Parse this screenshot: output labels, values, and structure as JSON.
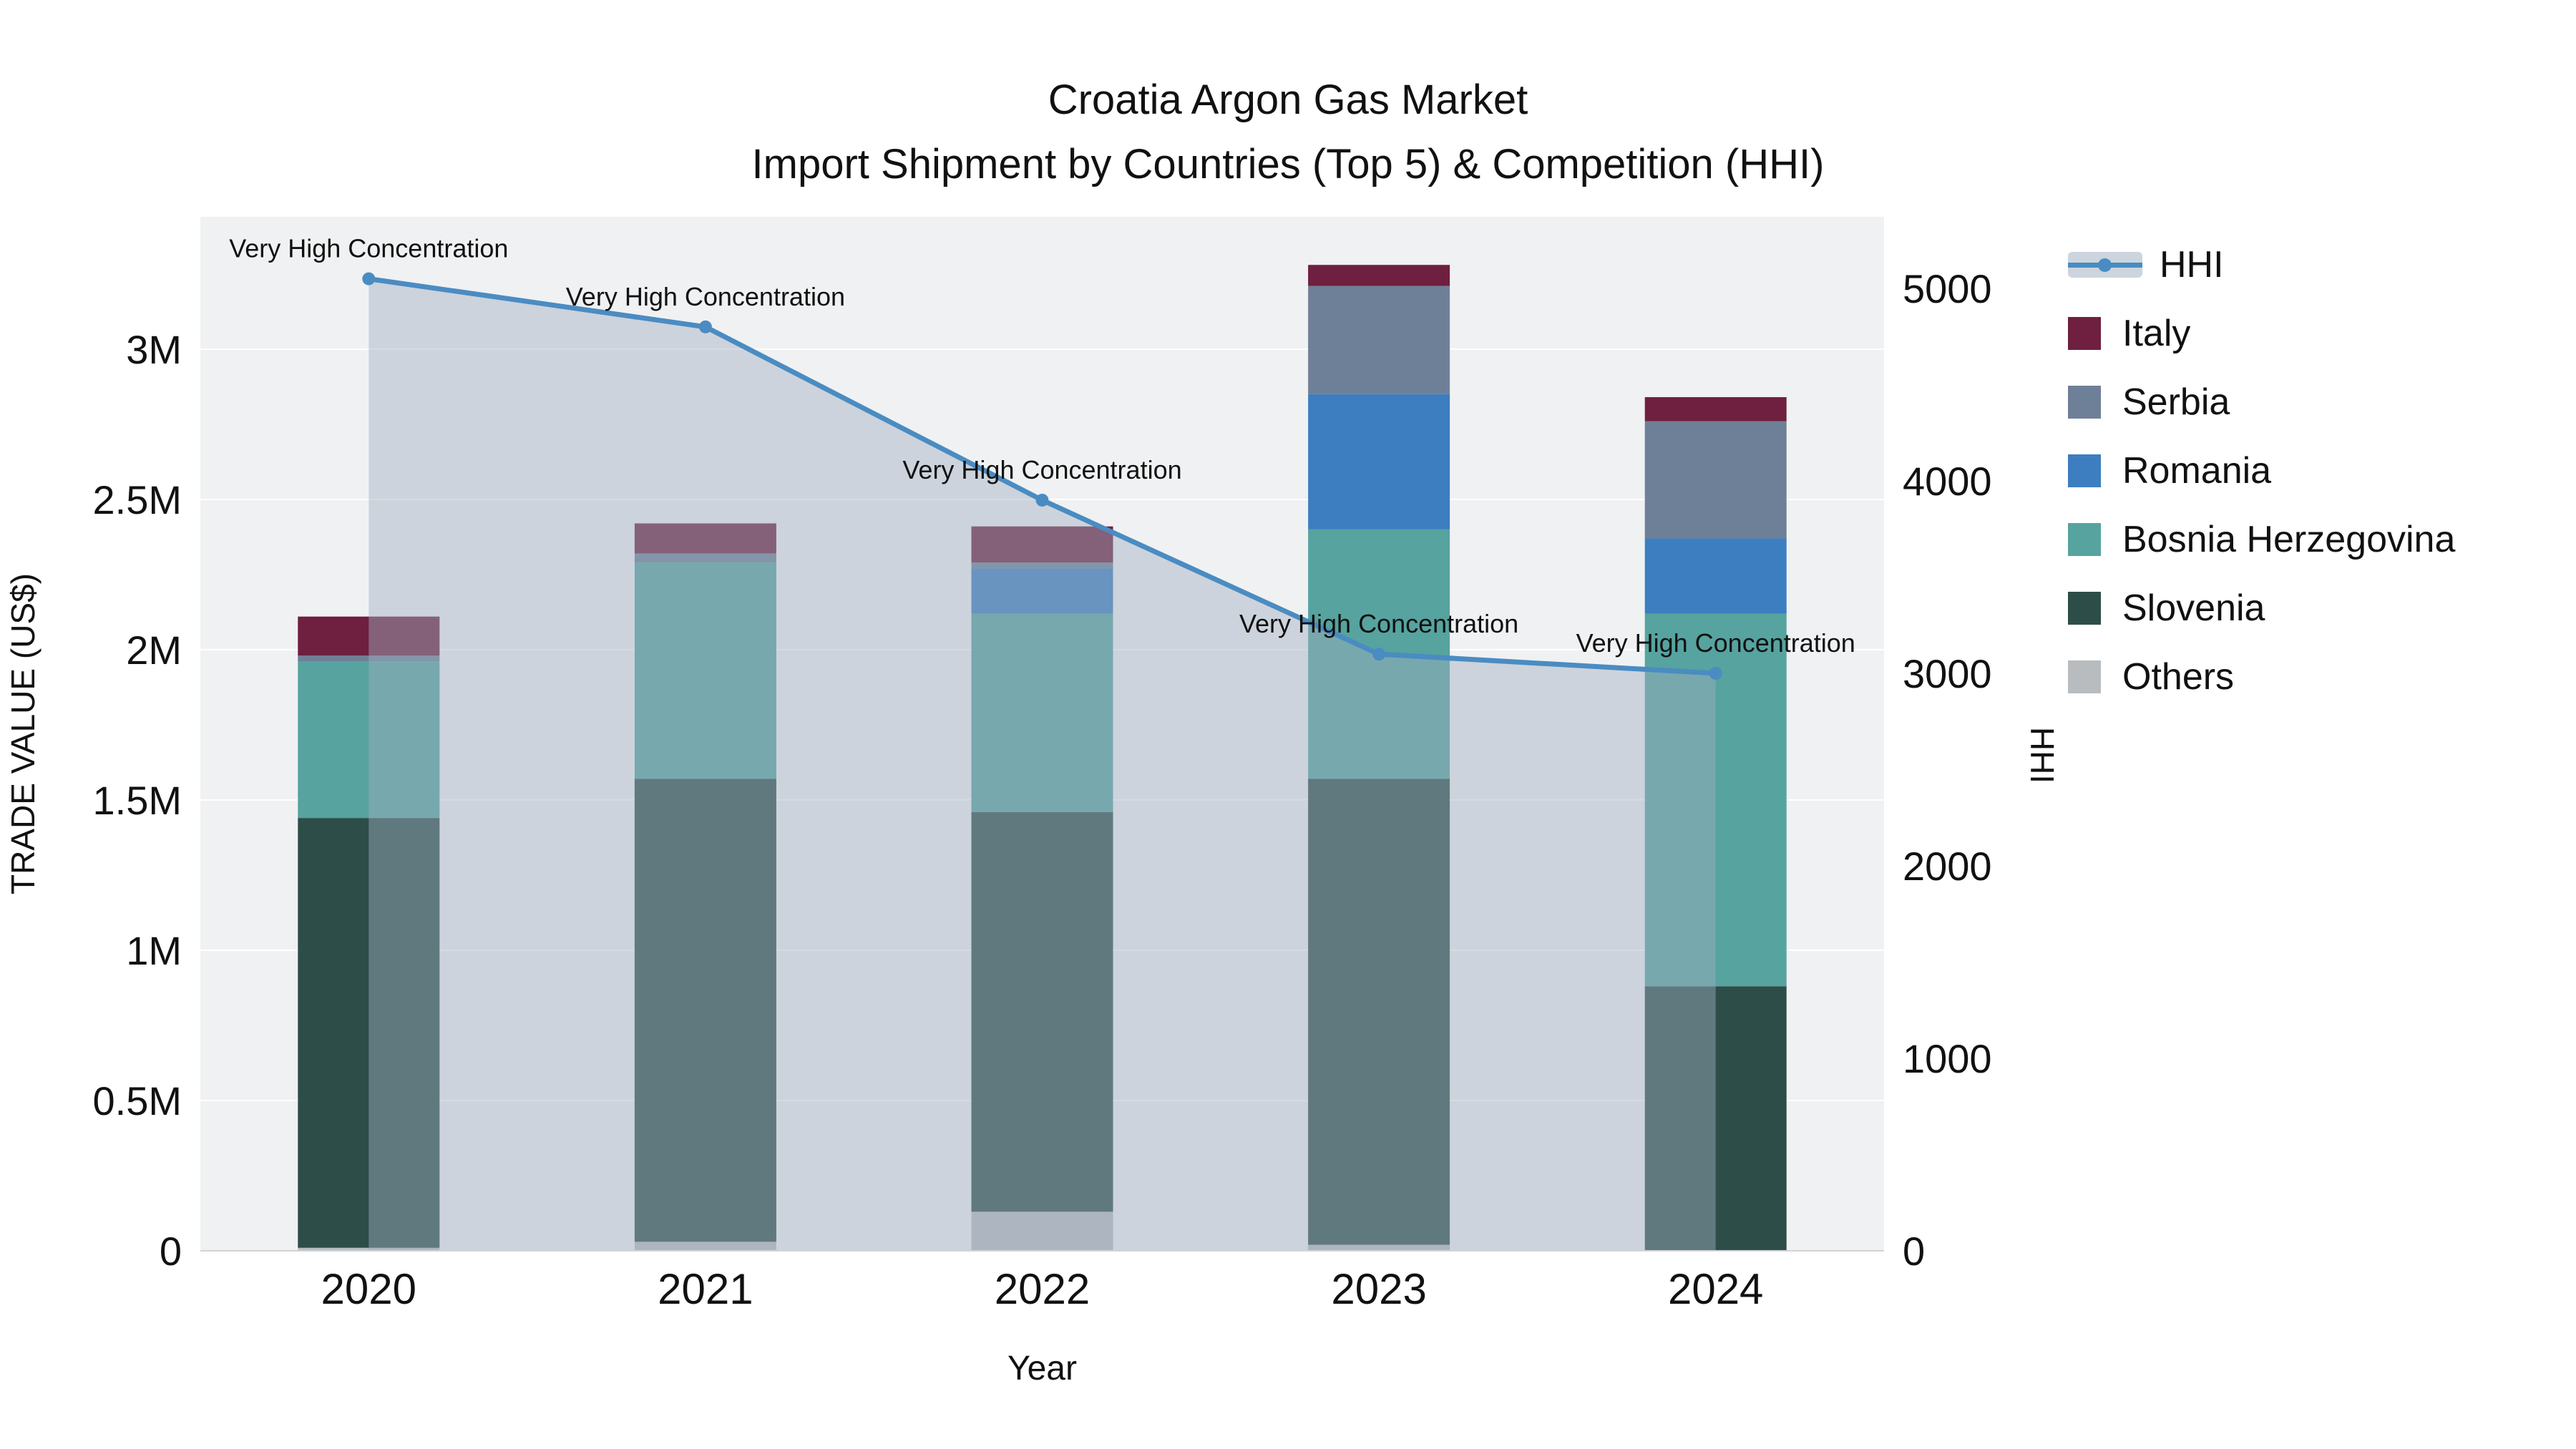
{
  "chart_data": {
    "type": "bar",
    "subtype": "stacked-bars-with-hhi-line-overlay",
    "title": "Croatia Argon Gas Market",
    "subtitle": "Import Shipment by Countries (Top 5) & Competition (HHI)",
    "xlabel": "Year",
    "ylabel_left": "TRADE VALUE (US$)",
    "ylabel_right": "HHI",
    "categories": [
      "2020",
      "2021",
      "2022",
      "2023",
      "2024"
    ],
    "bar_unit": "US$ millions",
    "series": [
      {
        "name": "Others",
        "color": "#b8bcbf",
        "values": [
          0.01,
          0.03,
          0.13,
          0.02,
          0.0
        ]
      },
      {
        "name": "Slovenia",
        "color": "#2d4d49",
        "values": [
          1.43,
          1.54,
          1.33,
          1.55,
          0.88
        ]
      },
      {
        "name": "Bosnia Herzegovina",
        "color": "#56a39f",
        "values": [
          0.52,
          0.72,
          0.66,
          0.83,
          1.24
        ]
      },
      {
        "name": "Romania",
        "color": "#3d7ec0",
        "values": [
          0.0,
          0.0,
          0.15,
          0.45,
          0.25
        ]
      },
      {
        "name": "Serbia",
        "color": "#6e8098",
        "values": [
          0.02,
          0.03,
          0.02,
          0.36,
          0.39
        ]
      },
      {
        "name": "Italy",
        "color": "#6f1f3f",
        "values": [
          0.13,
          0.1,
          0.12,
          0.07,
          0.08
        ]
      }
    ],
    "hhi_line": {
      "name": "HHI",
      "color": "#4a8cc2",
      "fill": "rgba(160,176,194,0.45)",
      "values": [
        5050,
        4800,
        3900,
        3100,
        3000
      ]
    },
    "annotations": [
      "Very High Concentration",
      "Very High Concentration",
      "Very High Concentration",
      "Very High Concentration",
      "Very High Concentration"
    ],
    "axes": {
      "left": {
        "ticks": [
          "0",
          "0.5M",
          "1M",
          "1.5M",
          "2M",
          "2.5M",
          "3M"
        ],
        "tick_values": [
          0,
          0.5,
          1,
          1.5,
          2,
          2.5,
          3
        ],
        "max": 3.44
      },
      "right": {
        "ticks": [
          "0",
          "1000",
          "2000",
          "3000",
          "4000",
          "5000"
        ],
        "tick_values": [
          0,
          1000,
          2000,
          3000,
          4000,
          5000
        ],
        "max": 5372
      }
    },
    "legend": [
      {
        "label": "HHI",
        "marker": "line",
        "color": "#4a8cc2"
      },
      {
        "label": "Italy",
        "marker": "square",
        "color": "#6f1f3f"
      },
      {
        "label": "Serbia",
        "marker": "square",
        "color": "#6e8098"
      },
      {
        "label": "Romania",
        "marker": "square",
        "color": "#3d7ec0"
      },
      {
        "label": "Bosnia Herzegovina",
        "marker": "square",
        "color": "#56a39f"
      },
      {
        "label": "Slovenia",
        "marker": "square",
        "color": "#2d4d49"
      },
      {
        "label": "Others",
        "marker": "square",
        "color": "#b8bcbf"
      }
    ],
    "plot_background": "#f0f1f2"
  }
}
